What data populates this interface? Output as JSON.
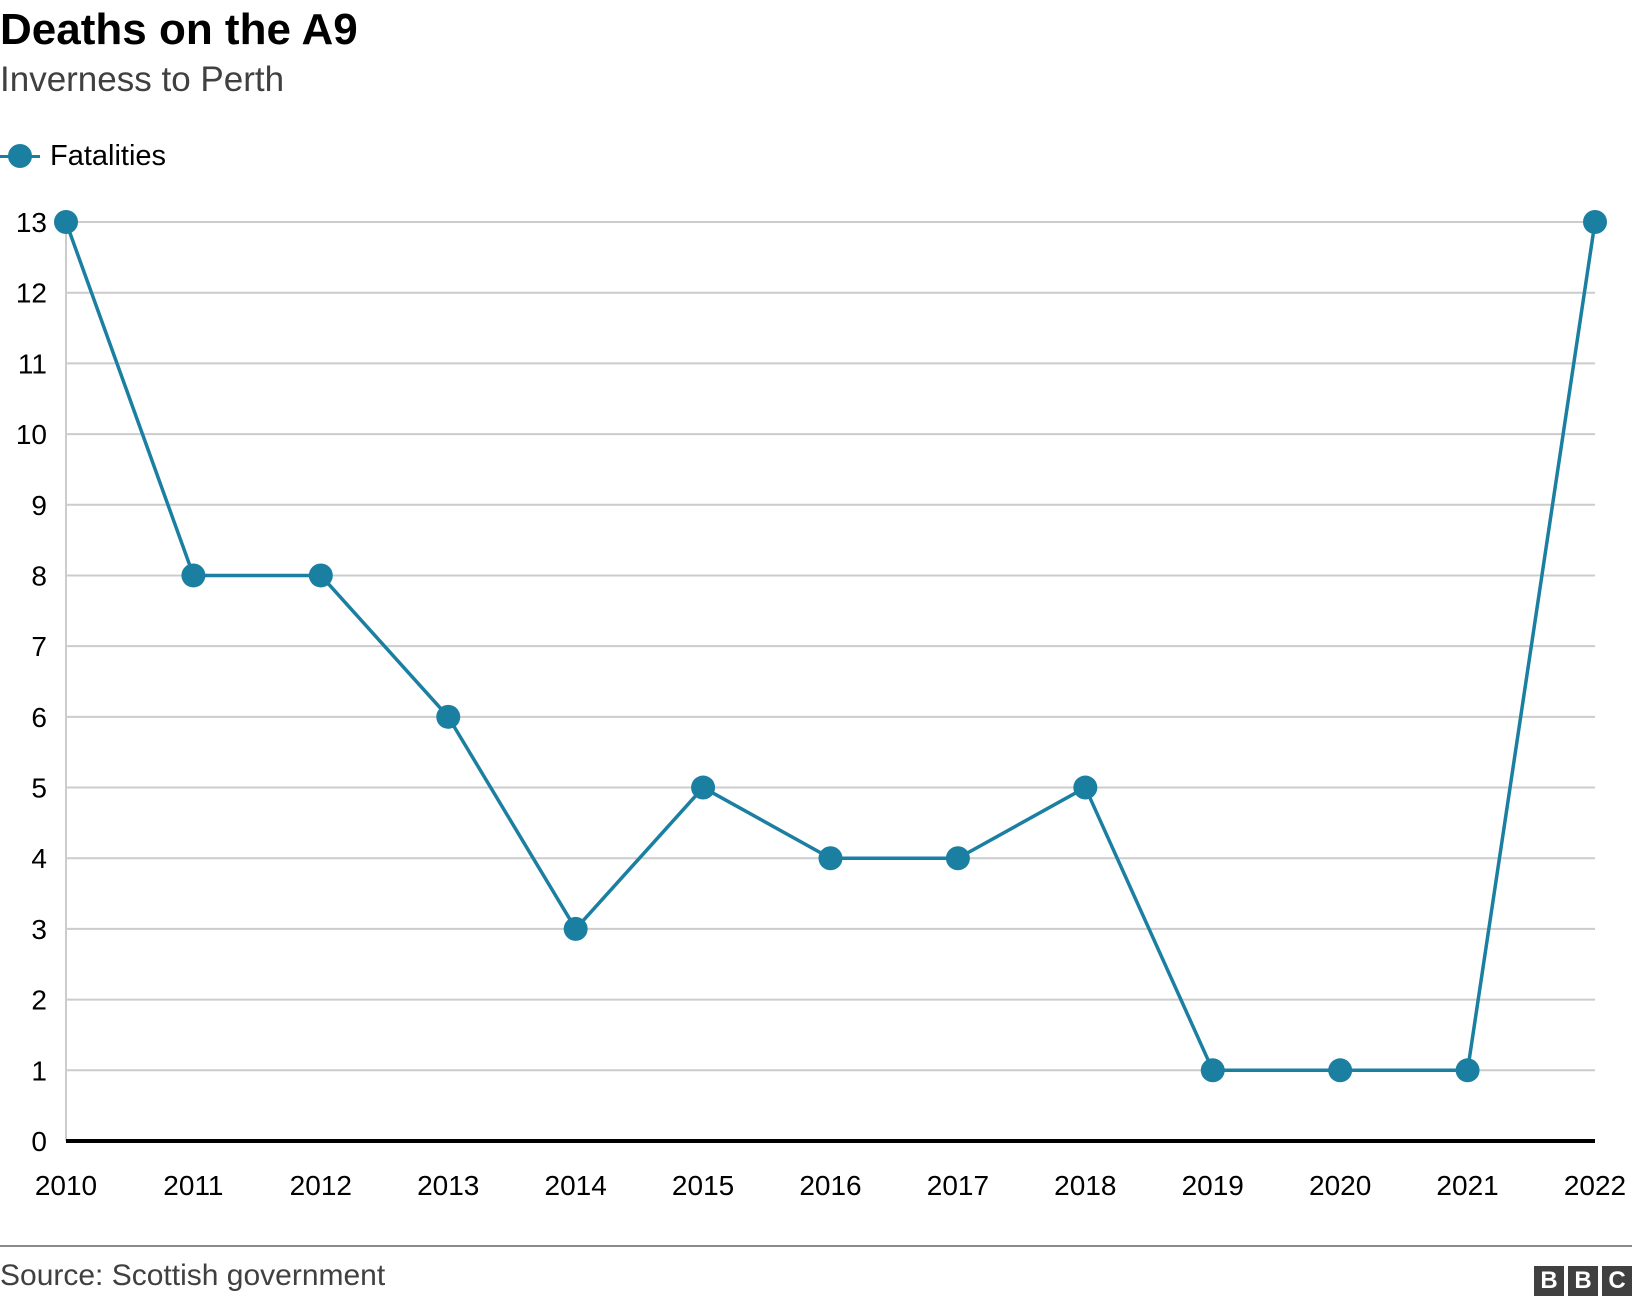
{
  "title": "Deaths on the A9",
  "subtitle": "Inverness to Perth",
  "legend": {
    "label": "Fatalities"
  },
  "source": "Source: Scottish government",
  "logo": [
    "B",
    "B",
    "C"
  ],
  "colors": {
    "series": "#1a7fa1",
    "grid": "#cccccc",
    "axis": "#000000",
    "text": "#000000"
  },
  "chart_data": {
    "type": "line",
    "title": "Deaths on the A9",
    "subtitle": "Inverness to Perth",
    "x": [
      "2010",
      "2011",
      "2012",
      "2013",
      "2014",
      "2015",
      "2016",
      "2017",
      "2018",
      "2019",
      "2020",
      "2021",
      "2022"
    ],
    "series": [
      {
        "name": "Fatalities",
        "values": [
          13,
          8,
          8,
          6,
          3,
          5,
          4,
          4,
          5,
          1,
          1,
          1,
          13
        ]
      }
    ],
    "ylim": [
      0,
      13
    ],
    "yticks": [
      0,
      1,
      2,
      3,
      4,
      5,
      6,
      7,
      8,
      9,
      10,
      11,
      12,
      13
    ],
    "grid": true,
    "legend": "top-left",
    "markers": true
  }
}
